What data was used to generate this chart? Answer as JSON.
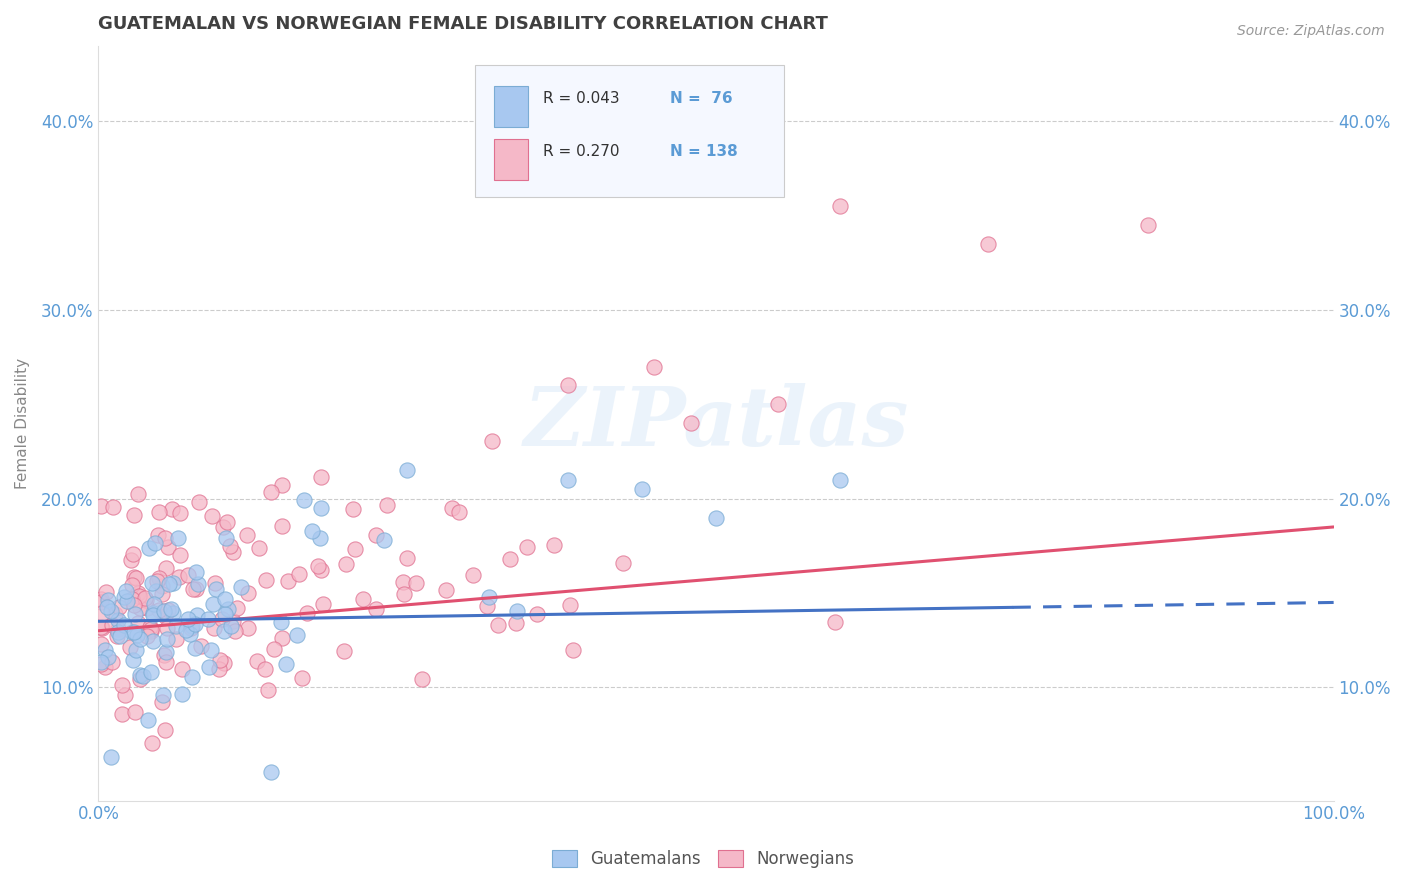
{
  "title": "GUATEMALAN VS NORWEGIAN FEMALE DISABILITY CORRELATION CHART",
  "source": "Source: ZipAtlas.com",
  "ylabel": "Female Disability",
  "xlim": [
    0,
    1
  ],
  "ylim": [
    0.04,
    0.44
  ],
  "yticks": [
    0.1,
    0.2,
    0.3,
    0.4
  ],
  "ytick_labels": [
    "10.0%",
    "20.0%",
    "30.0%",
    "40.0%"
  ],
  "xtick_labels_left": "0.0%",
  "xtick_labels_right": "100.0%",
  "guatemalan_color": "#a8c8f0",
  "guatemalan_edge_color": "#7bacd4",
  "norwegian_color": "#f5b8c8",
  "norwegian_edge_color": "#e07090",
  "guatemalan_line_color": "#4472c4",
  "norwegian_line_color": "#e05070",
  "legend_r1": "R = 0.043",
  "legend_n1": "N =  76",
  "legend_r2": "R = 0.270",
  "legend_n2": "N = 138",
  "legend_label1": "Guatemalans",
  "legend_label2": "Norwegians",
  "watermark_text": "ZIPatlas",
  "background_color": "#ffffff",
  "grid_color": "#cccccc",
  "title_color": "#404040",
  "axis_tick_color": "#5b9bd5"
}
